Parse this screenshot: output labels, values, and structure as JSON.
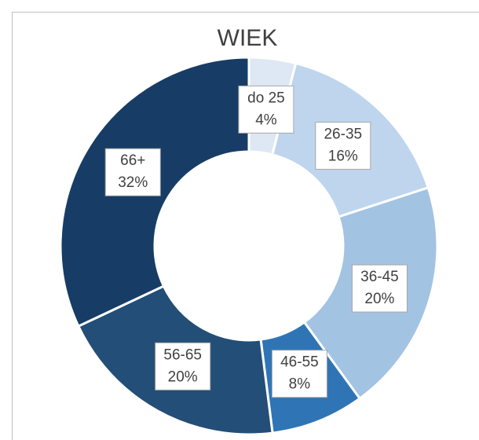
{
  "chart_data": {
    "type": "donut",
    "title": "WIEK",
    "categories": [
      "do 25",
      "26-35",
      "36-45",
      "46-55",
      "56-65",
      "66+"
    ],
    "values": [
      4,
      16,
      20,
      8,
      20,
      32
    ],
    "value_labels": [
      "4%",
      "16%",
      "20%",
      "8%",
      "20%",
      "32%"
    ],
    "colors": [
      "#dee8f4",
      "#bed5ed",
      "#a3c3e3",
      "#2f75b5",
      "#234e77",
      "#173d66"
    ]
  }
}
